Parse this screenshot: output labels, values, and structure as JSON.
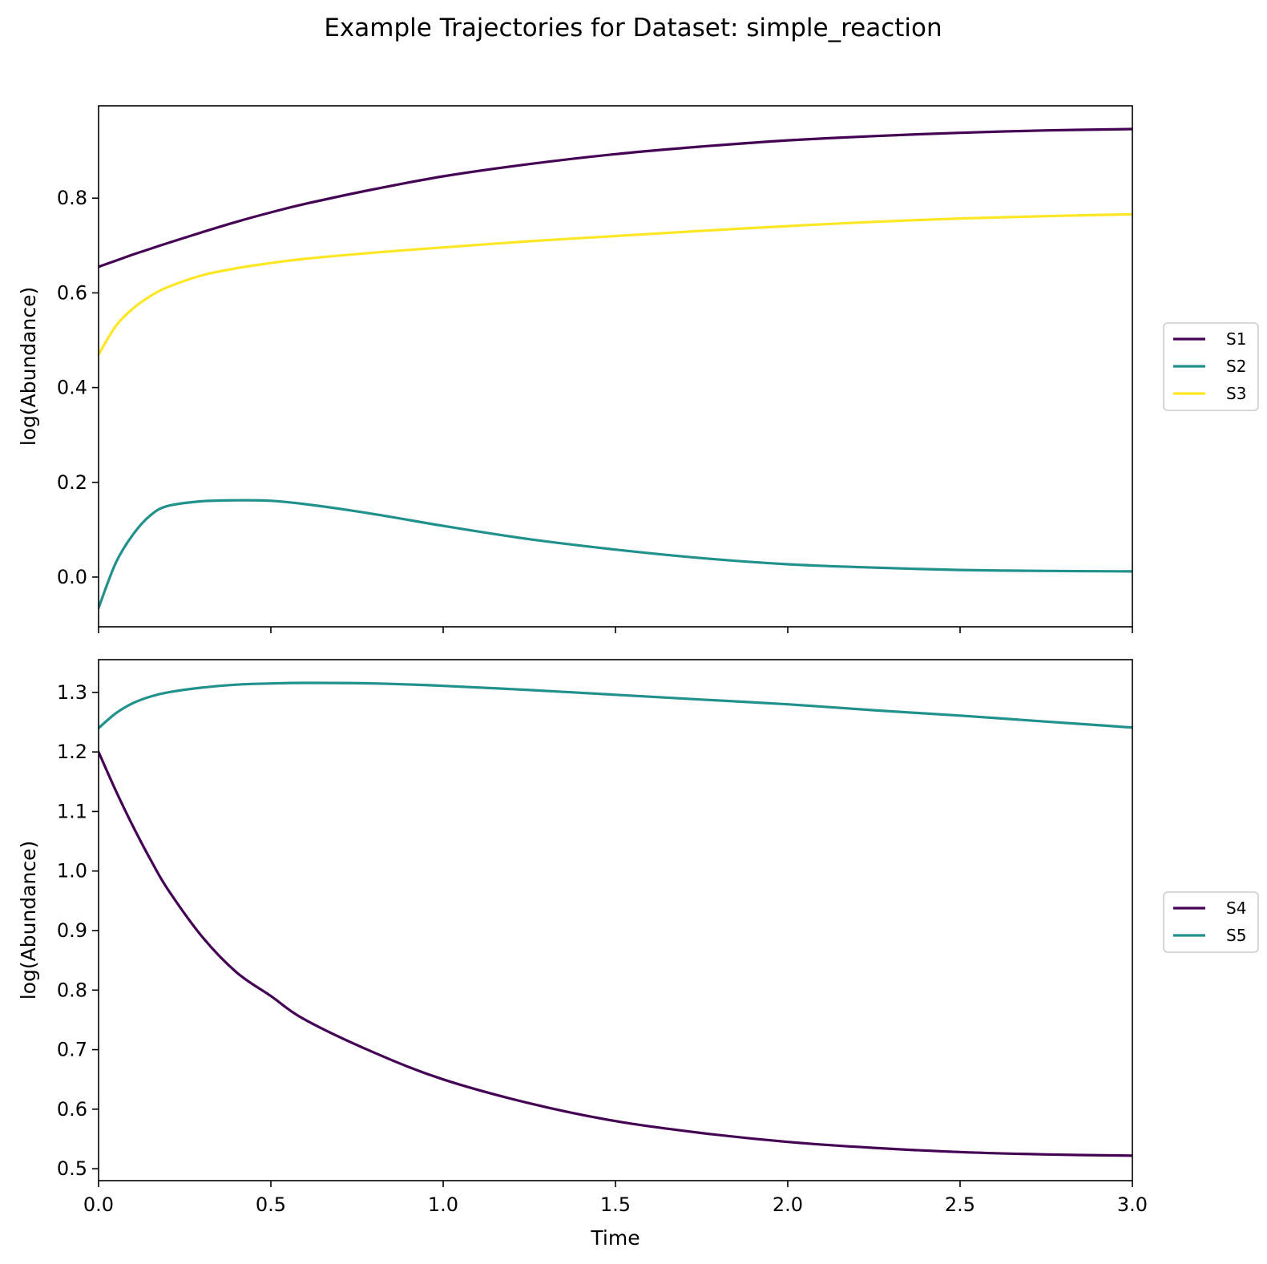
{
  "figure": {
    "title": "Example Trajectories for Dataset: simple_reaction"
  },
  "chart_data": [
    {
      "type": "line",
      "title": "",
      "xlabel": "",
      "ylabel": "log(Abundance)",
      "xlim": [
        0.0,
        3.0
      ],
      "ylim": [
        -0.105,
        0.995
      ],
      "xticks": [
        0.0,
        0.5,
        1.0,
        1.5,
        2.0,
        2.5,
        3.0
      ],
      "xtick_labels_shown": false,
      "yticks": [
        0.0,
        0.2,
        0.4,
        0.6,
        0.8
      ],
      "ytick_labels": [
        "0.0",
        "0.2",
        "0.4",
        "0.6",
        "0.8"
      ],
      "grid": false,
      "legend_position": "right-outside",
      "x": [
        0.0,
        0.05,
        0.1,
        0.15,
        0.2,
        0.3,
        0.4,
        0.5,
        0.6,
        0.8,
        1.0,
        1.25,
        1.5,
        1.75,
        2.0,
        2.25,
        2.5,
        2.75,
        3.0
      ],
      "series": [
        {
          "name": "S1",
          "color": "#440154",
          "values": [
            0.655,
            0.668,
            0.681,
            0.693,
            0.705,
            0.728,
            0.75,
            0.77,
            0.788,
            0.819,
            0.846,
            0.872,
            0.893,
            0.909,
            0.922,
            0.931,
            0.938,
            0.943,
            0.946
          ]
        },
        {
          "name": "S2",
          "color": "#21918c",
          "values": [
            -0.065,
            0.03,
            0.09,
            0.13,
            0.15,
            0.16,
            0.162,
            0.161,
            0.154,
            0.133,
            0.108,
            0.08,
            0.058,
            0.04,
            0.027,
            0.02,
            0.015,
            0.013,
            0.012
          ]
        },
        {
          "name": "S3",
          "color": "#fde725",
          "values": [
            0.47,
            0.53,
            0.567,
            0.593,
            0.612,
            0.637,
            0.652,
            0.663,
            0.672,
            0.685,
            0.696,
            0.709,
            0.72,
            0.731,
            0.741,
            0.75,
            0.757,
            0.762,
            0.766
          ]
        }
      ]
    },
    {
      "type": "line",
      "title": "",
      "xlabel": "Time",
      "ylabel": "log(Abundance)",
      "xlim": [
        0.0,
        3.0
      ],
      "ylim": [
        0.48,
        1.355
      ],
      "xticks": [
        0.0,
        0.5,
        1.0,
        1.5,
        2.0,
        2.5,
        3.0
      ],
      "xtick_labels": [
        "0.0",
        "0.5",
        "1.0",
        "1.5",
        "2.0",
        "2.5",
        "3.0"
      ],
      "xtick_labels_shown": true,
      "yticks": [
        0.5,
        0.6,
        0.7,
        0.8,
        0.9,
        1.0,
        1.1,
        1.2,
        1.3
      ],
      "ytick_labels": [
        "0.5",
        "0.6",
        "0.7",
        "0.8",
        "0.9",
        "1.0",
        "1.1",
        "1.2",
        "1.3"
      ],
      "grid": false,
      "legend_position": "right-outside",
      "x": [
        0.0,
        0.05,
        0.1,
        0.15,
        0.2,
        0.3,
        0.4,
        0.5,
        0.6,
        0.8,
        1.0,
        1.25,
        1.5,
        1.75,
        2.0,
        2.25,
        2.5,
        2.75,
        3.0
      ],
      "series": [
        {
          "name": "S4",
          "color": "#440154",
          "values": [
            1.2,
            1.135,
            1.075,
            1.02,
            0.97,
            0.89,
            0.83,
            0.79,
            0.75,
            0.695,
            0.65,
            0.61,
            0.58,
            0.56,
            0.545,
            0.535,
            0.528,
            0.524,
            0.522
          ]
        },
        {
          "name": "S5",
          "color": "#21918c",
          "values": [
            1.24,
            1.265,
            1.282,
            1.293,
            1.3,
            1.308,
            1.313,
            1.315,
            1.316,
            1.315,
            1.311,
            1.304,
            1.296,
            1.288,
            1.28,
            1.27,
            1.261,
            1.251,
            1.241
          ]
        }
      ]
    }
  ]
}
